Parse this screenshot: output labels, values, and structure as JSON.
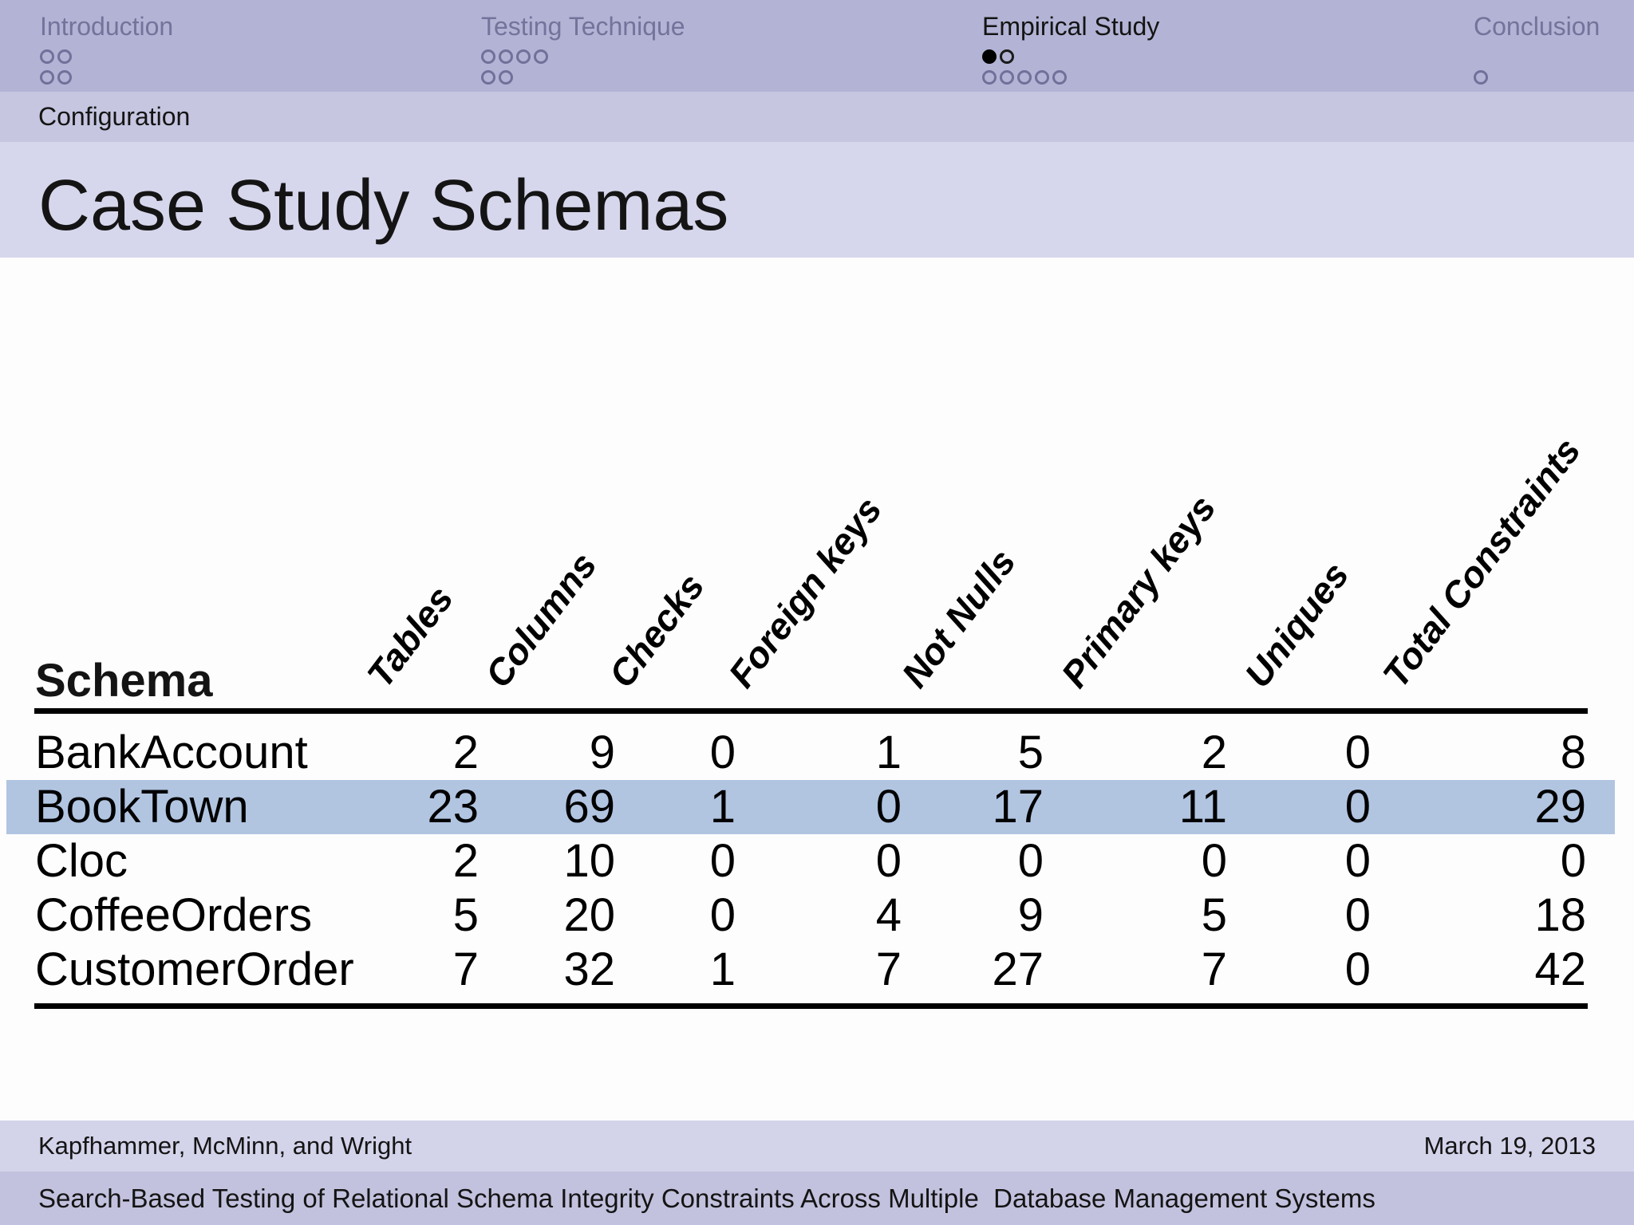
{
  "colors": {
    "nav_band": "#b3b3d5",
    "subsection_band": "#c6c6e1",
    "title_band": "#d6d6ec",
    "footer_authors_band": "#d3d3ea",
    "footer_paper_band": "#c2c2df",
    "highlight_row": "#b1c5e1",
    "inactive_nav_text": "#73739b",
    "active_text": "#141414"
  },
  "nav": {
    "sections": [
      {
        "label": "Introduction",
        "active": false,
        "dot_rows": [
          [
            "off",
            "off"
          ],
          [
            "off",
            "off"
          ]
        ]
      },
      {
        "label": "Testing Technique",
        "active": false,
        "dot_rows": [
          [
            "off",
            "off",
            "off",
            "off"
          ],
          [
            "off",
            "off"
          ]
        ]
      },
      {
        "label": "Empirical Study",
        "active": true,
        "dot_rows": [
          [
            "current",
            "todo"
          ],
          [
            "off",
            "off",
            "off",
            "off",
            "off"
          ]
        ]
      },
      {
        "label": "Conclusion",
        "active": false,
        "dot_rows": [
          [],
          [
            "off"
          ]
        ]
      }
    ]
  },
  "subsection": {
    "label": "Configuration"
  },
  "slide": {
    "title": "Case Study Schemas"
  },
  "table": {
    "corner_header": "Schema",
    "column_headers": [
      "Tables",
      "Columns",
      "Checks",
      "Foreign keys",
      "Not Nulls",
      "Primary keys",
      "Uniques",
      "Total Constraints"
    ],
    "rows": [
      {
        "name": "BankAccount",
        "highlighted": false,
        "values": [
          "2",
          "9",
          "0",
          "1",
          "5",
          "2",
          "0",
          "8"
        ]
      },
      {
        "name": "BookTown",
        "highlighted": true,
        "values": [
          "23",
          "69",
          "1",
          "0",
          "17",
          "11",
          "0",
          "29"
        ]
      },
      {
        "name": "Cloc",
        "highlighted": false,
        "values": [
          "2",
          "10",
          "0",
          "0",
          "0",
          "0",
          "0",
          "0"
        ]
      },
      {
        "name": "CoffeeOrders",
        "highlighted": false,
        "values": [
          "5",
          "20",
          "0",
          "4",
          "9",
          "5",
          "0",
          "18"
        ]
      },
      {
        "name": "CustomerOrder",
        "highlighted": false,
        "values": [
          "7",
          "32",
          "1",
          "7",
          "27",
          "7",
          "0",
          "42"
        ]
      }
    ]
  },
  "footer": {
    "authors": "Kapfhammer, McMinn, and Wright",
    "date": "March 19, 2013",
    "paper_title": "Search-Based Testing of Relational Schema Integrity Constraints Across Multiple  Database Management Systems"
  }
}
